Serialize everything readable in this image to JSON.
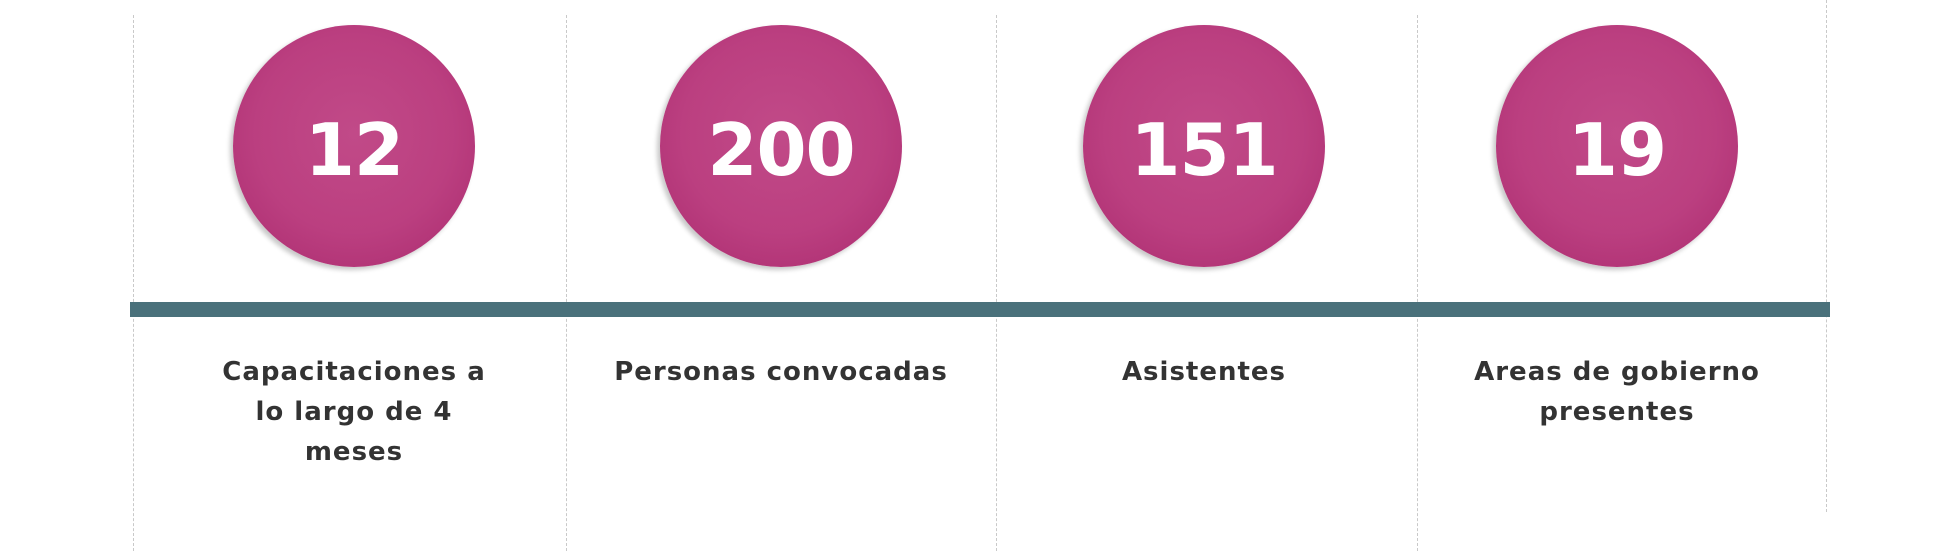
{
  "colors": {
    "circle": "#bb3f80",
    "timeline": "#4a717b",
    "label_text": "#333333",
    "number_text": "#ffffff",
    "divider": "#c9c9c9"
  },
  "stats": [
    {
      "value": "12",
      "label": "Capacitaciones a lo largo de 4 meses"
    },
    {
      "value": "200",
      "label": "Personas convocadas"
    },
    {
      "value": "151",
      "label": "Asistentes"
    },
    {
      "value": "19",
      "label": "Areas de gobierno presentes"
    }
  ]
}
